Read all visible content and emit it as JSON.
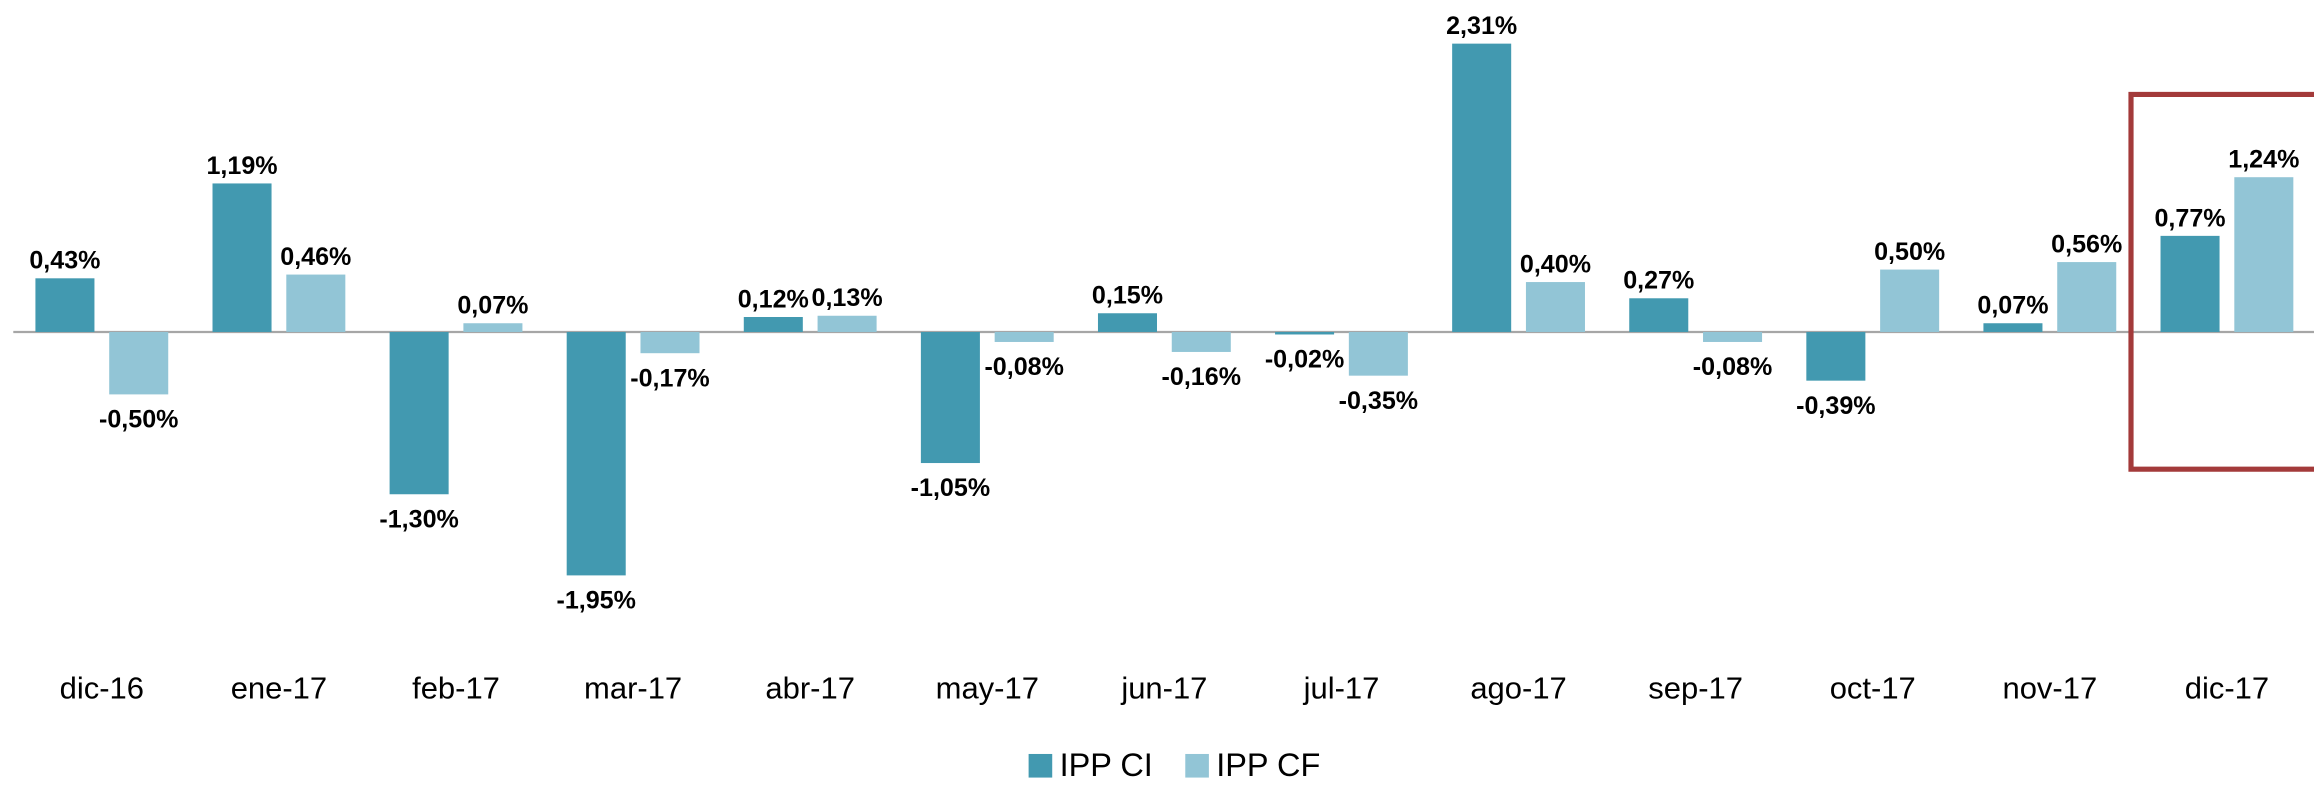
{
  "chart_data": {
    "type": "bar",
    "categories": [
      "dic-16",
      "ene-17",
      "feb-17",
      "mar-17",
      "abr-17",
      "may-17",
      "jun-17",
      "jul-17",
      "ago-17",
      "sep-17",
      "oct-17",
      "nov-17",
      "dic-17"
    ],
    "series": [
      {
        "name": "IPP CI",
        "color": "#4299b0",
        "values": [
          0.43,
          1.19,
          -1.3,
          -1.95,
          0.12,
          -1.05,
          0.15,
          -0.02,
          2.31,
          0.27,
          -0.39,
          0.07,
          0.77
        ],
        "value_labels": [
          "0,43%",
          "1,19%",
          "-1,30%",
          "-1,95%",
          "0,12%",
          "-1,05%",
          "0,15%",
          "-0,02%",
          "2,31%",
          "0,27%",
          "-0,39%",
          "0,07%",
          "0,77%"
        ]
      },
      {
        "name": "IPP CF",
        "color": "#92c5d6",
        "values": [
          -0.5,
          0.46,
          0.07,
          -0.17,
          0.13,
          -0.08,
          -0.16,
          -0.35,
          0.4,
          -0.08,
          0.5,
          0.56,
          1.24
        ],
        "value_labels": [
          "-0,50%",
          "0,46%",
          "0,07%",
          "-0,17%",
          "0,13%",
          "-0,08%",
          "-0,16%",
          "-0,35%",
          "0,40%",
          "-0,08%",
          "0,50%",
          "0,56%",
          "1,24%"
        ]
      }
    ],
    "legend": "bottom"
  }
}
